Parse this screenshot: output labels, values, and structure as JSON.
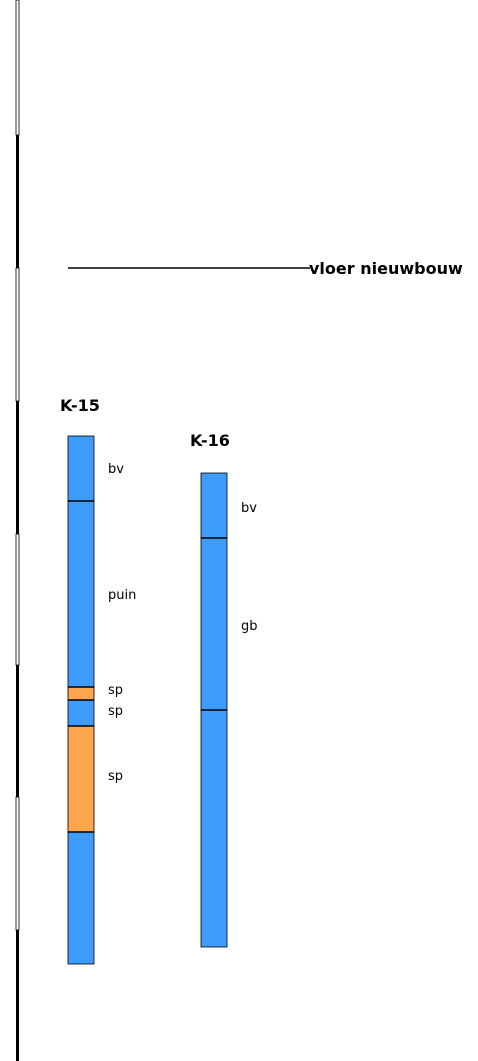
{
  "floor_marker": {
    "label": "vloer nieuwbouw"
  },
  "colors": {
    "clay_fill": "#3f9cff",
    "sand_fill": "#ffa64f",
    "outline": "#000000"
  },
  "boreholes": [
    {
      "name": "K-15",
      "layers": [
        {
          "label": "bv",
          "color": "#3f9cff"
        },
        {
          "label": "puin",
          "color": "#3f9cff"
        },
        {
          "label": "sp",
          "color": "#ffa64f"
        },
        {
          "label": "sp",
          "color": "#3f9cff"
        },
        {
          "label": "sp",
          "color": "#ffa64f"
        },
        {
          "label": "",
          "color": "#3f9cff"
        }
      ]
    },
    {
      "name": "K-16",
      "layers": [
        {
          "label": "bv",
          "color": "#3f9cff"
        },
        {
          "label": "gb",
          "color": "#3f9cff"
        },
        {
          "label": "",
          "color": "#3f9cff"
        }
      ]
    }
  ]
}
